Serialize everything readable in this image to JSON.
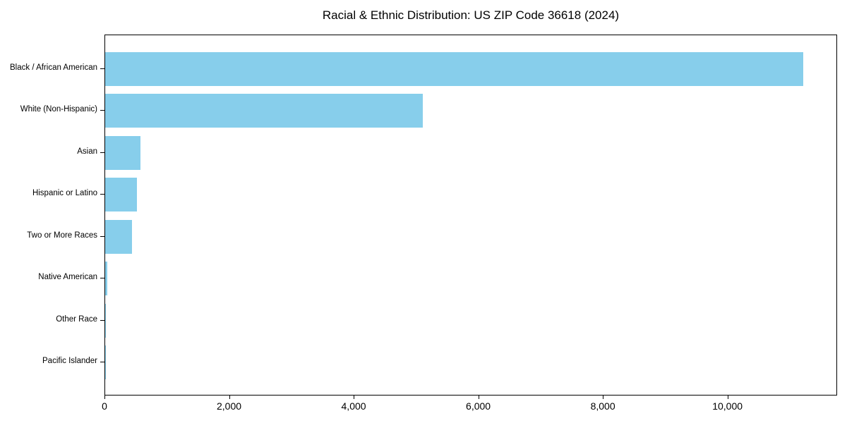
{
  "chart_data": {
    "type": "bar",
    "orientation": "horizontal",
    "title": "Racial & Ethnic Distribution: US ZIP Code 36618 (2024)",
    "xlabel": "",
    "ylabel": "",
    "categories": [
      "Black / African American",
      "White (Non-Hispanic)",
      "Asian",
      "Hispanic or Latino",
      "Two or More Races",
      "Native American",
      "Other Race",
      "Pacific Islander"
    ],
    "values": [
      11200,
      5100,
      570,
      515,
      435,
      35,
      12,
      3
    ],
    "xlim": [
      0,
      11760
    ],
    "xticks": [
      0,
      2000,
      4000,
      6000,
      8000,
      10000
    ],
    "xtick_labels": [
      "0",
      "2,000",
      "4,000",
      "6,000",
      "8,000",
      "10,000"
    ],
    "grid": false,
    "legend": null,
    "bar_color": "#87CEEB",
    "spine_color": "#000000",
    "background_color": "#ffffff"
  }
}
